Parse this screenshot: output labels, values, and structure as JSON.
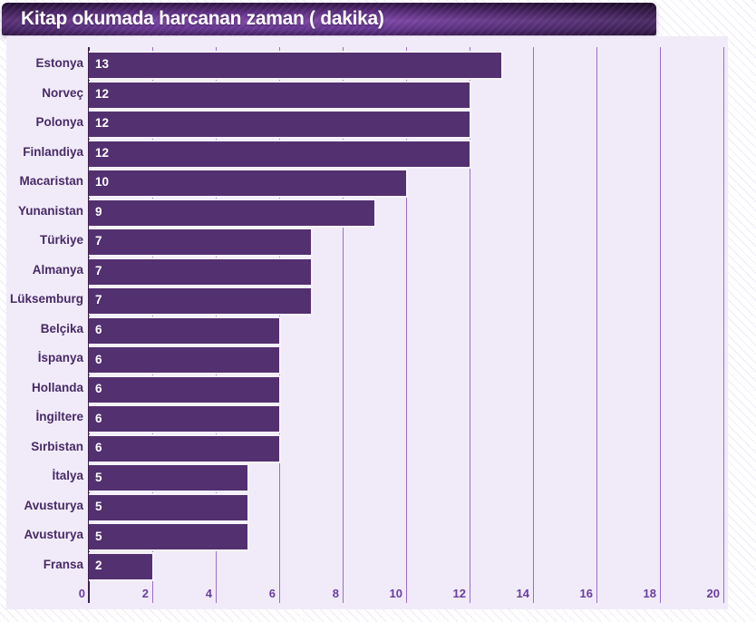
{
  "header": {
    "title": "Kitap okumada harcanan zaman ( dakika)"
  },
  "colors": {
    "bar_fill": "#533070",
    "panel_background": "#f1ebf9",
    "gridline": "#9c6dc6",
    "axis_line": "#3c1f52",
    "category_label": "#482a66",
    "tick_label": "#6a3da2",
    "value_label": "#ffffff",
    "title_bar_gradient_mid": "#7d48a6",
    "title_text": "#ffffff"
  },
  "chart_data": {
    "type": "bar",
    "orientation": "horizontal",
    "title": "Kitap okumada harcanan zaman ( dakika)",
    "xlabel": "",
    "ylabel": "",
    "xlim": [
      0,
      20
    ],
    "grid": true,
    "value_labels_position": "inside-start",
    "categories": [
      "Estonya",
      "Norveç",
      "Polonya",
      "Finlandiya",
      "Macaristan",
      "Yunanistan",
      "Türkiye",
      "Almanya",
      "Lüksemburg",
      "Belçika",
      "İspanya",
      "Hollanda",
      "İngiltere",
      "Sırbistan",
      "İtalya",
      "Avusturya",
      "Avusturya",
      "Fransa"
    ],
    "values": [
      13,
      12,
      12,
      12,
      10,
      9,
      7,
      7,
      7,
      6,
      6,
      6,
      6,
      6,
      5,
      5,
      5,
      2
    ],
    "x_ticks": [
      0,
      2,
      4,
      6,
      8,
      10,
      12,
      14,
      16,
      18,
      20
    ]
  }
}
